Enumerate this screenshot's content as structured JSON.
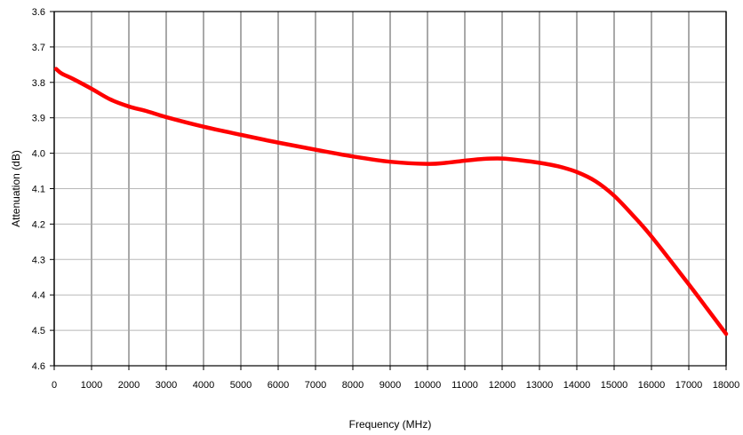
{
  "chart_data": {
    "type": "line",
    "xlabel": "Frequency (MHz)",
    "ylabel": "Attenuation (dB)",
    "xlim": [
      0,
      18000
    ],
    "ylim": [
      3.6,
      4.6
    ],
    "y_axis_inverted": true,
    "x_ticks": [
      "0",
      "1000",
      "2000",
      "3000",
      "4000",
      "5000",
      "6000",
      "7000",
      "8000",
      "9000",
      "10000",
      "11000",
      "12000",
      "13000",
      "14000",
      "15000",
      "16000",
      "17000",
      "18000"
    ],
    "y_ticks": [
      "3.6",
      "3.7",
      "3.8",
      "3.9",
      "4.0",
      "4.1",
      "4.2",
      "4.3",
      "4.4",
      "4.5",
      "4.6"
    ],
    "x_ticks_values": [
      0,
      1000,
      2000,
      3000,
      4000,
      5000,
      6000,
      7000,
      8000,
      9000,
      10000,
      11000,
      12000,
      13000,
      14000,
      15000,
      16000,
      17000,
      18000
    ],
    "y_ticks_values": [
      3.6,
      3.7,
      3.8,
      3.9,
      4.0,
      4.1,
      4.2,
      4.3,
      4.4,
      4.5,
      4.6
    ],
    "grid": {
      "vertical": true,
      "horizontal": true
    },
    "series": [
      {
        "color": "#ff0000",
        "x": [
          50,
          200,
          500,
          1000,
          1500,
          2000,
          2500,
          3000,
          4000,
          5000,
          6000,
          7000,
          8000,
          9000,
          10000,
          10500,
          11000,
          11500,
          12000,
          12500,
          13000,
          13500,
          14000,
          14500,
          15000,
          15500,
          16000,
          17000,
          17500,
          18000
        ],
        "y": [
          3.762,
          3.775,
          3.79,
          3.818,
          3.848,
          3.868,
          3.882,
          3.898,
          3.925,
          3.948,
          3.97,
          3.99,
          4.009,
          4.024,
          4.03,
          4.027,
          4.021,
          4.016,
          4.015,
          4.02,
          4.027,
          4.037,
          4.053,
          4.079,
          4.12,
          4.175,
          4.235,
          4.37,
          4.44,
          4.51
        ]
      }
    ]
  }
}
